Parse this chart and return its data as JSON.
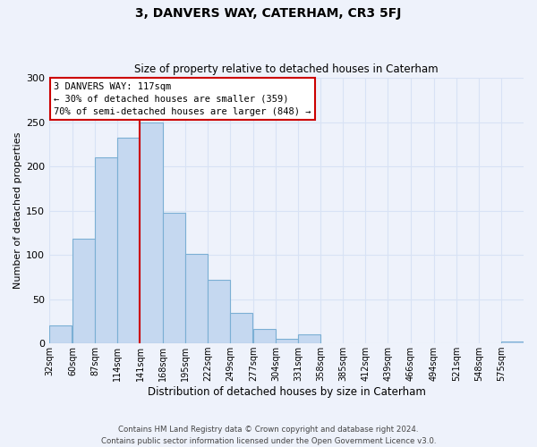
{
  "title": "3, DANVERS WAY, CATERHAM, CR3 5FJ",
  "subtitle": "Size of property relative to detached houses in Caterham",
  "xlabel": "Distribution of detached houses by size in Caterham",
  "ylabel": "Number of detached properties",
  "bin_labels": [
    "32sqm",
    "60sqm",
    "87sqm",
    "114sqm",
    "141sqm",
    "168sqm",
    "195sqm",
    "222sqm",
    "249sqm",
    "277sqm",
    "304sqm",
    "331sqm",
    "358sqm",
    "385sqm",
    "412sqm",
    "439sqm",
    "466sqm",
    "494sqm",
    "521sqm",
    "548sqm",
    "575sqm"
  ],
  "bar_values": [
    20,
    118,
    210,
    232,
    250,
    148,
    101,
    72,
    35,
    16,
    5,
    10,
    0,
    0,
    0,
    0,
    0,
    0,
    0,
    0,
    2
  ],
  "bar_color": "#c5d8f0",
  "bar_edgecolor": "#7bafd4",
  "background_color": "#eef2fb",
  "grid_color": "#d8e2f5",
  "ylim": [
    0,
    300
  ],
  "yticks": [
    0,
    50,
    100,
    150,
    200,
    250,
    300
  ],
  "property_label": "3 DANVERS WAY: 117sqm",
  "annotation_line1": "← 30% of detached houses are smaller (359)",
  "annotation_line2": "70% of semi-detached houses are larger (848) →",
  "vline_color": "#cc0000",
  "annotation_box_edgecolor": "#cc0000",
  "annotation_box_facecolor": "#ffffff",
  "footer_line1": "Contains HM Land Registry data © Crown copyright and database right 2024.",
  "footer_line2": "Contains public sector information licensed under the Open Government Licence v3.0.",
  "bin_width": 27,
  "vline_x": 141
}
